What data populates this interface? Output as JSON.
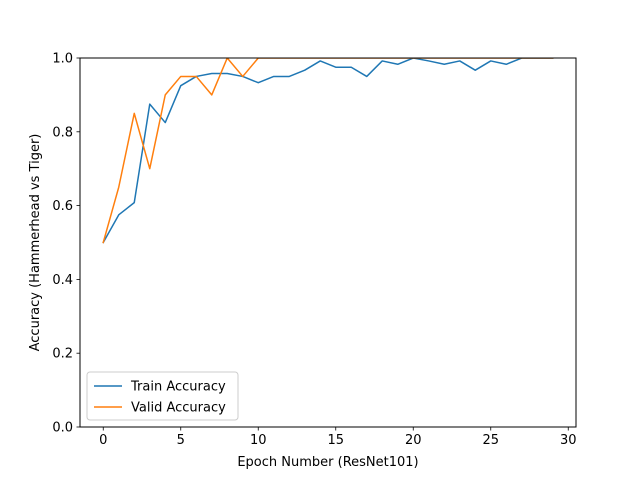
{
  "chart_data": {
    "type": "line",
    "xlabel": "Epoch Number (ResNet101)",
    "ylabel": "Accuracy (Hammerhead vs Tiger)",
    "xlim": [
      -1.5,
      30.5
    ],
    "ylim": [
      0.0,
      1.0
    ],
    "xticks": [
      0,
      5,
      10,
      15,
      20,
      25,
      30
    ],
    "yticks": [
      0.0,
      0.2,
      0.4,
      0.6,
      0.8,
      1.0
    ],
    "xtick_labels": [
      "0",
      "5",
      "10",
      "15",
      "20",
      "25",
      "30"
    ],
    "ytick_labels": [
      "0.0",
      "0.2",
      "0.4",
      "0.6",
      "0.8",
      "1.0"
    ],
    "grid": false,
    "legend_position": "lower-left",
    "series": [
      {
        "name": "Train Accuracy",
        "color": "#1f77b4",
        "x": [
          0,
          1,
          2,
          3,
          4,
          5,
          6,
          7,
          8,
          9,
          10,
          11,
          12,
          13,
          14,
          15,
          16,
          17,
          18,
          19,
          20,
          21,
          22,
          23,
          24,
          25,
          26,
          27,
          28,
          29
        ],
        "y": [
          0.5,
          0.575,
          0.608,
          0.875,
          0.825,
          0.925,
          0.95,
          0.958,
          0.958,
          0.95,
          0.933,
          0.95,
          0.95,
          0.967,
          0.992,
          0.975,
          0.975,
          0.95,
          0.992,
          0.983,
          1.0,
          0.992,
          0.983,
          0.992,
          0.967,
          0.992,
          0.983,
          1.0,
          1.0,
          1.0
        ]
      },
      {
        "name": "Valid Accuracy",
        "color": "#ff7f0e",
        "x": [
          0,
          1,
          2,
          3,
          4,
          5,
          6,
          7,
          8,
          9,
          10,
          11,
          12,
          13,
          14,
          15,
          16,
          17,
          18,
          19,
          20,
          21,
          22,
          23,
          24,
          25,
          26,
          27,
          28,
          29
        ],
        "y": [
          0.5,
          0.65,
          0.85,
          0.7,
          0.9,
          0.95,
          0.95,
          0.9,
          1.0,
          0.95,
          1.0,
          1.0,
          1.0,
          1.0,
          1.0,
          1.0,
          1.0,
          1.0,
          1.0,
          1.0,
          1.0,
          1.0,
          1.0,
          1.0,
          1.0,
          1.0,
          1.0,
          1.0,
          1.0,
          1.0
        ]
      }
    ]
  }
}
